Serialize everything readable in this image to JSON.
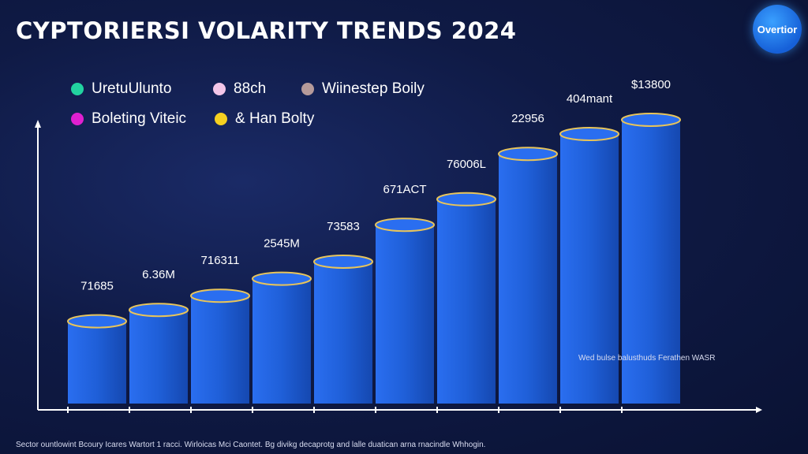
{
  "chart_data": {
    "type": "bar",
    "title": "CYPTORIERSI VOLARITY TRENDS 2024",
    "categories": [
      "",
      "",
      "",
      "",
      "",
      "",
      "",
      "",
      "",
      "",
      ""
    ],
    "value_labels": [
      "71685",
      "6.36M",
      "716311",
      "2545M",
      "73583",
      "671ACT",
      "76006L",
      "22956",
      "404mant",
      "$13800",
      ""
    ],
    "bar_heights_relative": [
      0.29,
      0.33,
      0.38,
      0.44,
      0.5,
      0.63,
      0.72,
      0.88,
      0.95,
      1.0
    ],
    "legend": [
      {
        "label": "UretuUlunto",
        "color": "#22d3a0"
      },
      {
        "label": "88ch",
        "color": "#f3c6e8"
      },
      {
        "label": "Wiinestep Boily",
        "color": "#b59a9a"
      },
      {
        "label": "Boleting Viteic",
        "color": "#e020d0"
      },
      {
        "label": "& Han Bolty",
        "color": "#f5d020"
      }
    ],
    "legend_placement": "top-left",
    "grid": false,
    "colors": {
      "bar": "#1f5fd8",
      "bar_top": "#e8c45a",
      "accent": "#3aa0ff"
    }
  },
  "logo_text": "Overtior",
  "side_note": "Wed bulse balusthuds Ferathen WASR",
  "footnote": "Sector ountlowint Bcoury Icares Wartort 1 racci. Wirloicas Mci Caontet. Bg divikg decaprotg and lalle duatican arna rnacindle Whhogin."
}
